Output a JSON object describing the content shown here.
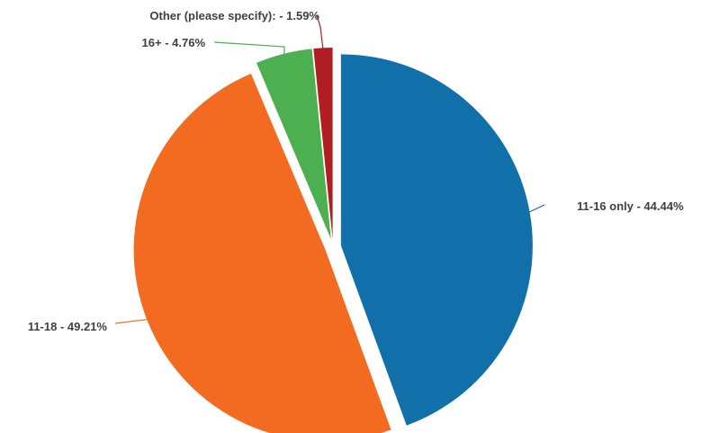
{
  "chart_data": {
    "type": "pie",
    "title": "",
    "slices": [
      {
        "label": "11-16 only - 44.44%",
        "category": "11-16 only",
        "value": 44.44,
        "color": "#1170aa"
      },
      {
        "label": "11-18 - 49.21%",
        "category": "11-18",
        "value": 49.21,
        "color": "#f26b21"
      },
      {
        "label": "16+ - 4.76%",
        "category": "16+",
        "value": 4.76,
        "color": "#4caf50"
      },
      {
        "label": "Other (please specify): - 1.59%",
        "category": "Other (please specify):",
        "value": 1.59,
        "color": "#b01e22"
      }
    ],
    "legend": "none"
  }
}
